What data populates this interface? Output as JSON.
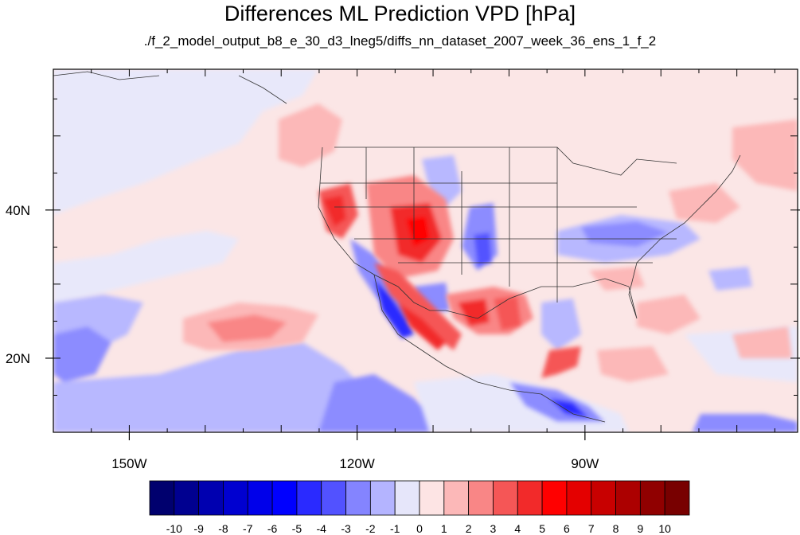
{
  "title": "Differences ML Prediction VPD [hPa]",
  "subtitle": "./f_2_model_output_b8_e_30_d3_lneg5/diffs_nn_dataset_2007_week_36_ens_1_f_2",
  "map": {
    "lon_range": [
      -160,
      -62
    ],
    "lat_range": [
      10,
      59
    ],
    "x_ticks": [
      {
        "lon": -150,
        "label": "150W"
      },
      {
        "lon": -120,
        "label": "120W"
      },
      {
        "lon": -90,
        "label": "90W"
      }
    ],
    "y_ticks": [
      {
        "lat": 40,
        "label": "40N"
      },
      {
        "lat": 20,
        "label": "20N"
      }
    ],
    "background_color": "#fbe6e6"
  },
  "colorbar": {
    "labels": [
      "-10",
      "-9",
      "-8",
      "-7",
      "-6",
      "-5",
      "-4",
      "-3",
      "-2",
      "-1",
      "0",
      "1",
      "2",
      "3",
      "4",
      "5",
      "6",
      "7",
      "8",
      "9",
      "10"
    ],
    "colors": [
      "#00006e",
      "#000090",
      "#0000b0",
      "#0000d0",
      "#0000ea",
      "#0000ff",
      "#2a2aff",
      "#5252ff",
      "#8484ff",
      "#b4b4ff",
      "#e6e6fa",
      "#fde4e4",
      "#fcb8b8",
      "#f98686",
      "#f55656",
      "#f22a2a",
      "#ff0000",
      "#e40000",
      "#c80000",
      "#ac0000",
      "#900000",
      "#780000"
    ]
  }
}
